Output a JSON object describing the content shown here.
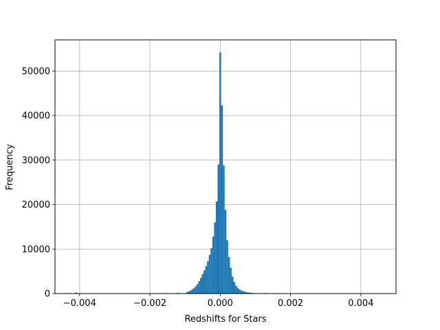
{
  "chart_data": {
    "type": "bar",
    "title": "",
    "xlabel": "Redshifts for Stars",
    "ylabel": "Frequency",
    "xlim": [
      -0.0047,
      0.005
    ],
    "ylim": [
      0,
      57000
    ],
    "grid": true,
    "xticks": [
      -0.004,
      -0.002,
      0.0,
      0.002,
      0.004
    ],
    "xtick_labels": [
      "−0.004",
      "−0.002",
      "0.000",
      "0.002",
      "0.004"
    ],
    "yticks": [
      0,
      10000,
      20000,
      30000,
      40000,
      50000
    ],
    "ytick_labels": [
      "0",
      "10000",
      "20000",
      "30000",
      "40000",
      "50000"
    ],
    "bar_color": "#1f77b4",
    "bins": {
      "x": [
        -0.00095,
        -0.0009,
        -0.00085,
        -0.0008,
        -0.00075,
        -0.0007,
        -0.00065,
        -0.0006,
        -0.00055,
        -0.0005,
        -0.00045,
        -0.0004,
        -0.00035,
        -0.0003,
        -0.00025,
        -0.0002,
        -0.00015,
        -0.0001,
        -5e-05,
        0.0,
        5e-05,
        0.0001,
        0.00015,
        0.0002,
        0.00025,
        0.0003,
        0.00035,
        0.0004,
        0.00045,
        0.0005,
        0.00055,
        0.0006,
        0.00065,
        0.0007,
        0.00075,
        0.0008,
        0.00085,
        0.0009,
        0.00095,
        0.001
      ],
      "values": [
        300,
        450,
        650,
        900,
        1200,
        1600,
        2100,
        2800,
        3500,
        4400,
        5200,
        6200,
        7300,
        8700,
        10200,
        12800,
        16000,
        20700,
        29000,
        54200,
        42300,
        28800,
        18800,
        12000,
        8200,
        5800,
        3800,
        2600,
        1800,
        1300,
        950,
        700,
        550,
        420,
        320,
        250,
        200,
        160,
        120,
        90
      ],
      "outliers_x": [
        -0.0043,
        -0.0041,
        -0.0024,
        -0.0021,
        -0.0018,
        -0.0015,
        -0.0012,
        0.0013,
        0.0016,
        0.0019,
        0.0021,
        0.0024,
        0.0027,
        0.003,
        0.0033,
        0.0036,
        0.004,
        0.0043,
        0.0046
      ],
      "outliers_values": [
        100,
        250,
        40,
        60,
        90,
        120,
        180,
        140,
        100,
        70,
        60,
        40,
        30,
        30,
        25,
        20,
        40,
        20,
        30
      ]
    }
  }
}
